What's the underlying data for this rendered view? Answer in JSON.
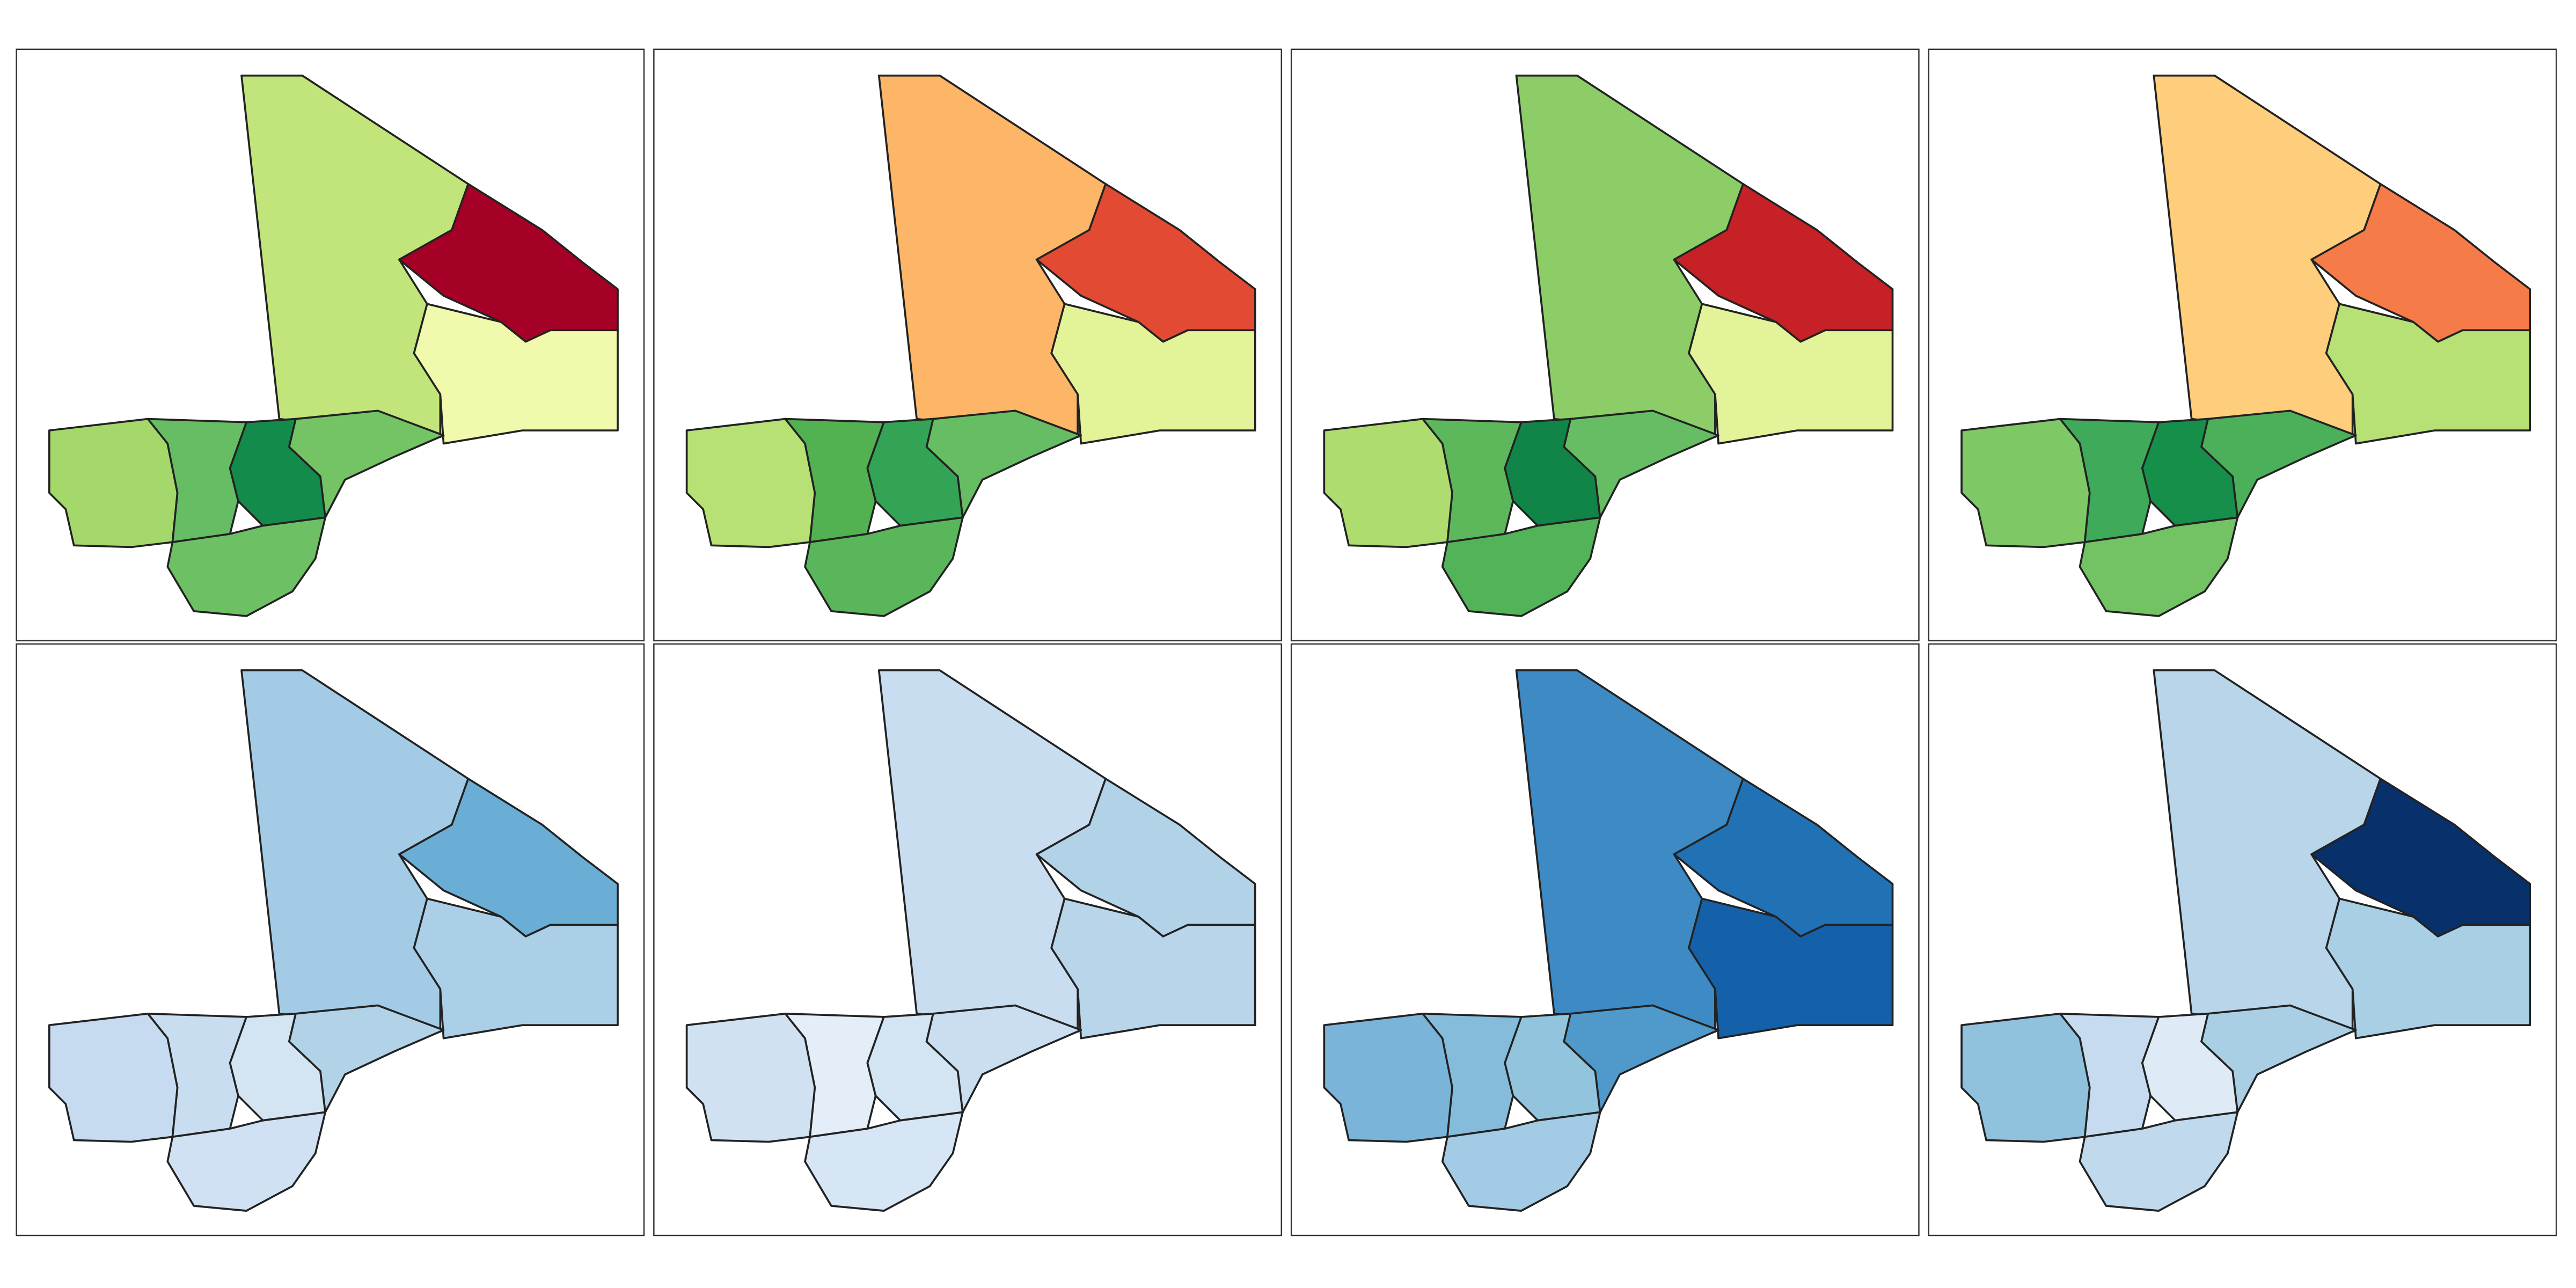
{
  "panels": [
    {
      "fills": [
        "#c1e57b",
        "#a50026",
        "#f1f9ac",
        "#a5d86a",
        "#66bd63",
        "#138c4b",
        "#74c365",
        "#6dc064"
      ]
    },
    {
      "fills": [
        "#fdb567",
        "#e34a33",
        "#e3f397",
        "#b7e075",
        "#52b151",
        "#33a456",
        "#66bd63",
        "#5ab65a"
      ]
    },
    {
      "fills": [
        "#8ccd67",
        "#c52126",
        "#e3f399",
        "#aedc6f",
        "#5cb85b",
        "#118548",
        "#66bd63",
        "#53b359"
      ]
    },
    {
      "fills": [
        "#fece7c",
        "#f57b49",
        "#b7e075",
        "#7fc866",
        "#3faa59",
        "#168f4a",
        "#4cb05a",
        "#73c365"
      ]
    },
    {
      "fills": [
        "#a3cbe5",
        "#6aaed6",
        "#abcfe6",
        "#c6dbef",
        "#c9ddf0",
        "#d3e4f3",
        "#b2d2e8",
        "#cfe1f2"
      ]
    },
    {
      "fills": [
        "#c9ddf0",
        "#b2d2e8",
        "#b8d5ea",
        "#d0e1f2",
        "#e3eef9",
        "#d3e4f3",
        "#cadef0",
        "#d6e6f4"
      ]
    },
    {
      "fills": [
        "#3d8ac5",
        "#2171b5",
        "#1561a9",
        "#7bb4d9",
        "#85bcdc",
        "#92c4de",
        "#4f9acb",
        "#a3cbe5"
      ]
    },
    {
      "fills": [
        "#b8d5ea",
        "#08306b",
        "#a9cfe5",
        "#90c2de",
        "#c6dbef",
        "#deebf7",
        "#aacfe5",
        "#c1d9ed"
      ]
    }
  ]
}
